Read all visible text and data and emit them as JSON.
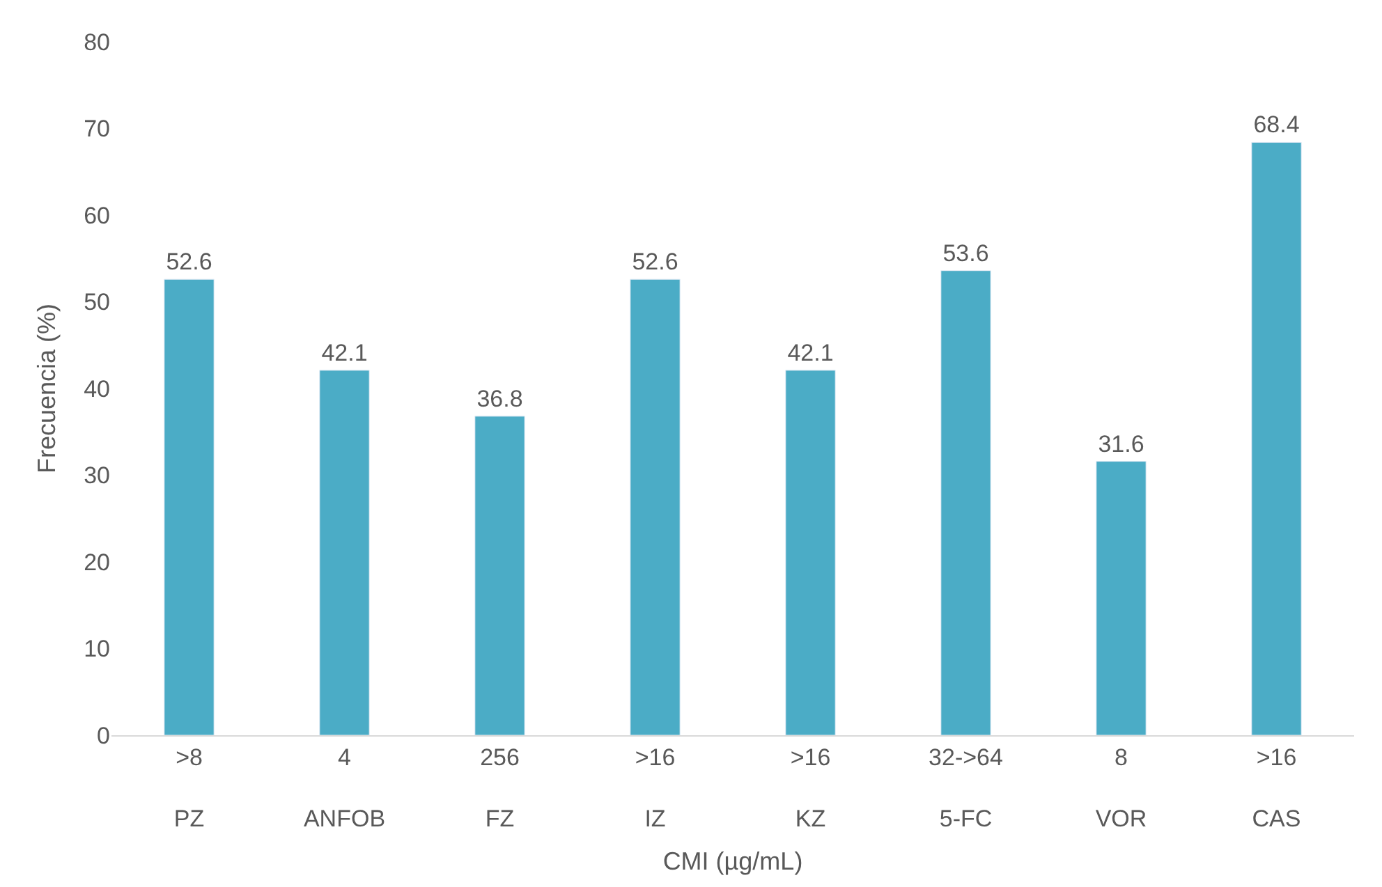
{
  "chart_data": {
    "type": "bar",
    "xlabel": "CMI (µg/mL)",
    "ylabel": "Frecuencia (%)",
    "categories": [
      ">8\nPZ",
      "4\nANFOB",
      "256\nFZ",
      ">16\nIZ",
      ">16\nKZ",
      "32->64\n5-FC",
      "8\nVOR",
      ">16\nCAS"
    ],
    "values": [
      52.6,
      42.1,
      36.8,
      52.6,
      42.1,
      53.6,
      31.6,
      68.4
    ],
    "color": "#4bacc6",
    "ylim": [
      0,
      80
    ],
    "yticks": [
      0,
      10,
      20,
      30,
      40,
      50,
      60,
      70,
      80
    ],
    "grid": false,
    "legend": false,
    "data_labels": true
  }
}
